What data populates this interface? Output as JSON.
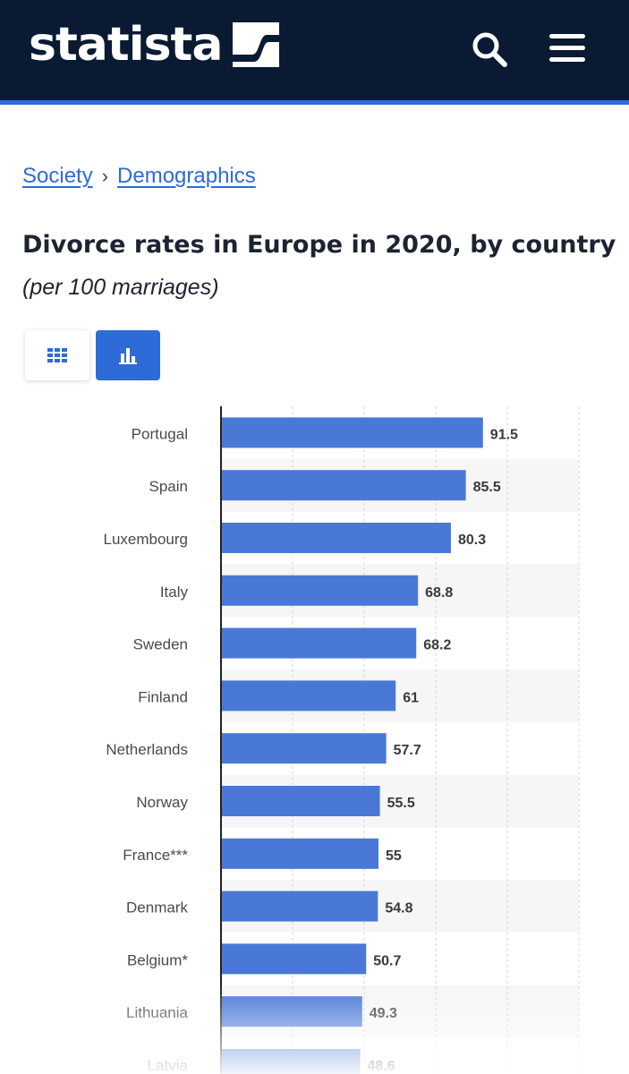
{
  "header": {
    "logo_text": "statista",
    "logo_icon": "statista-logo-mark",
    "search_icon": "search-icon",
    "menu_icon": "hamburger-menu-icon",
    "background": "#0a1a33",
    "accent": "#2d6bd8"
  },
  "breadcrumb": {
    "items": [
      "Society",
      "Demographics"
    ],
    "separator": "›"
  },
  "title": "Divorce rates in Europe in 2020, by country",
  "subtitle": "(per 100 marriages)",
  "view_toggle": {
    "table_icon": "grid-table-icon",
    "chart_icon": "bar-chart-icon",
    "active": "chart"
  },
  "chart_data": {
    "type": "bar",
    "orientation": "horizontal",
    "categories": [
      "Portugal",
      "Spain",
      "Luxembourg",
      "Italy",
      "Sweden",
      "Finland",
      "Netherlands",
      "Norway",
      "France***",
      "Denmark",
      "Belgium*",
      "Lithuania",
      "Latvia"
    ],
    "values": [
      91.5,
      85.5,
      80.3,
      68.8,
      68.2,
      61,
      57.7,
      55.5,
      55,
      54.8,
      50.7,
      49.3,
      48.6
    ],
    "xlim": [
      0,
      125
    ],
    "grid": true,
    "bar_color": "#4a78d6",
    "data_labels": true
  }
}
